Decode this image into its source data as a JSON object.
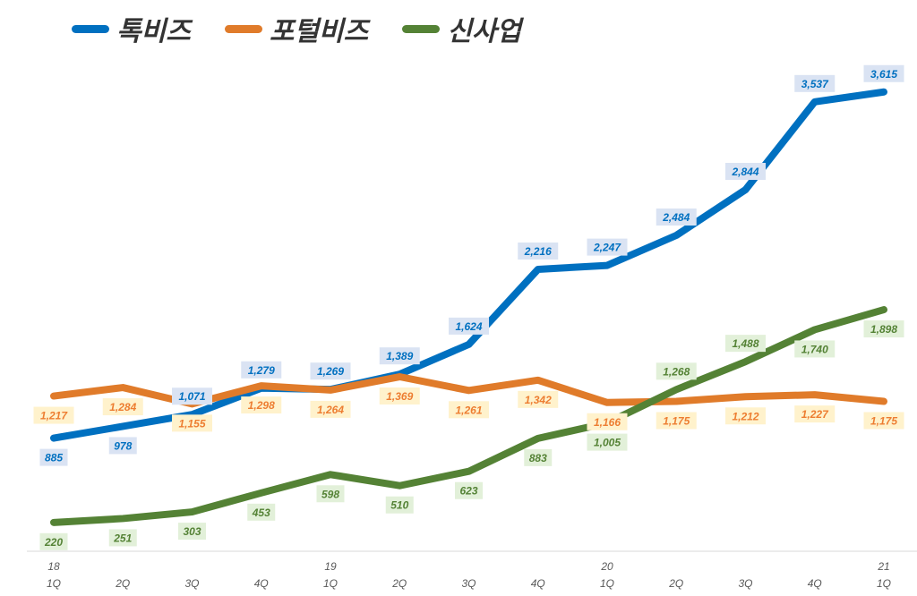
{
  "chart_data": {
    "type": "line",
    "categories": [
      "18 1Q",
      "2Q",
      "3Q",
      "4Q",
      "19 1Q",
      "2Q",
      "3Q",
      "4Q",
      "20 1Q",
      "2Q",
      "3Q",
      "4Q",
      "21 1Q"
    ],
    "category_labels": [
      [
        "18",
        "1Q"
      ],
      [
        "",
        "2Q"
      ],
      [
        "",
        "3Q"
      ],
      [
        "",
        "4Q"
      ],
      [
        "19",
        "1Q"
      ],
      [
        "",
        "2Q"
      ],
      [
        "",
        "3Q"
      ],
      [
        "",
        "4Q"
      ],
      [
        "20",
        "1Q"
      ],
      [
        "",
        "2Q"
      ],
      [
        "",
        "3Q"
      ],
      [
        "",
        "4Q"
      ],
      [
        "21",
        "1Q"
      ]
    ],
    "series": [
      {
        "name": "톡비즈",
        "color": "#0070c0",
        "label_bg": "#dae3f3",
        "values": [
          885,
          978,
          1071,
          1279,
          1269,
          1389,
          1624,
          2216,
          2247,
          2484,
          2844,
          3537,
          3615
        ],
        "label_pos": [
          "below",
          "below",
          "above",
          "above",
          "above",
          "above",
          "above",
          "above",
          "above",
          "above",
          "above",
          "above",
          "above"
        ]
      },
      {
        "name": "포털비즈",
        "color": "#e07b2a",
        "label_bg": "#fff2cc",
        "label_color": "#ed7d31",
        "values": [
          1217,
          1284,
          1155,
          1298,
          1264,
          1369,
          1261,
          1342,
          1166,
          1175,
          1212,
          1227,
          1175
        ],
        "label_pos": [
          "below",
          "below",
          "below",
          "below",
          "below",
          "below",
          "below",
          "below",
          "below",
          "below",
          "below",
          "below",
          "below"
        ]
      },
      {
        "name": "신사업",
        "color": "#548235",
        "label_bg": "#e2f0d9",
        "values": [
          220,
          251,
          303,
          453,
          598,
          510,
          623,
          883,
          1005,
          1268,
          1488,
          1740,
          1898
        ],
        "label_pos": [
          "below",
          "below",
          "below",
          "below",
          "below",
          "below",
          "below",
          "below",
          "below",
          "above",
          "above",
          "below",
          "below"
        ]
      }
    ],
    "ylim": [
      0,
      3800
    ],
    "grid": false,
    "legend_position": "top-left"
  }
}
